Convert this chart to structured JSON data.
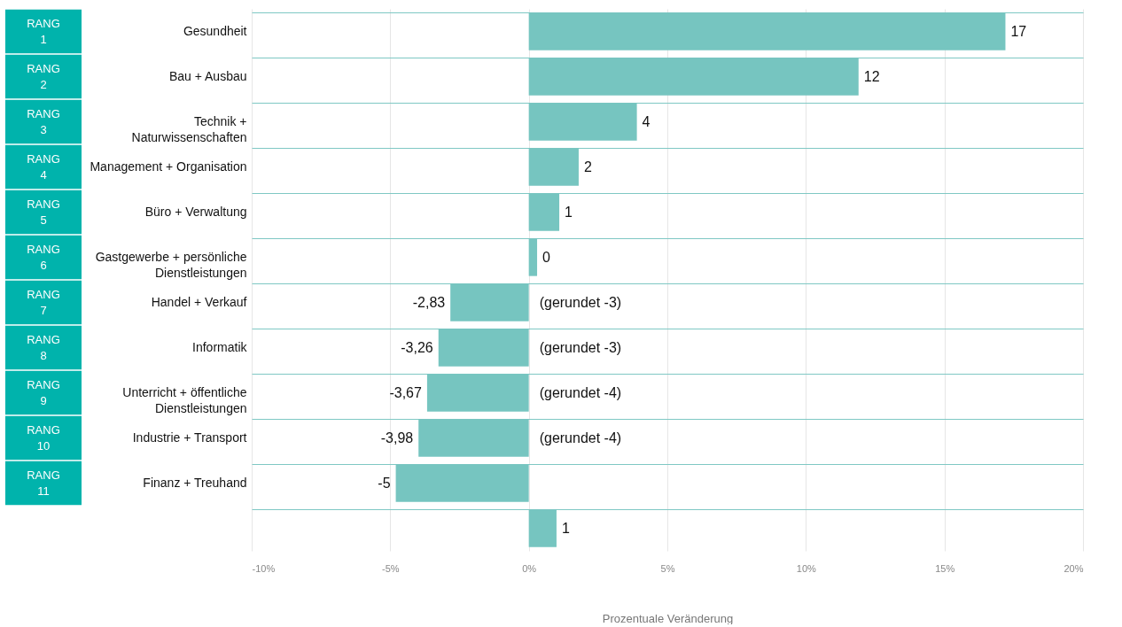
{
  "chart_data": {
    "type": "bar",
    "orientation": "horizontal",
    "categories": [
      "Gesundheit",
      "Bau + Ausbau",
      "Technik +\nNaturwissenschaften",
      "Management + Organisation",
      "Büro + Verwaltung",
      "Gastgewerbe + persönliche\nDienstleistungen",
      "Handel + Verkauf",
      "Informatik",
      "Unterricht + öffentliche\nDienstleistungen",
      "Industrie + Transport",
      "Finanz + Treuhand",
      null
    ],
    "values": [
      17.2,
      11.9,
      3.9,
      1.8,
      1.1,
      0.3,
      -2.83,
      -3.26,
      -3.67,
      -3.98,
      -4.8,
      1.0
    ],
    "value_labels": [
      "17",
      "12",
      "4",
      "2",
      "1",
      "0",
      "-2,83",
      "-3,26",
      "-3,67",
      "-3,98",
      "-5",
      "1"
    ],
    "color": "#76c5c0",
    "xlabel": "Prozentuale Veränderung",
    "xlim": [
      -10,
      20
    ],
    "xticks": [
      {
        "value": -10,
        "label": "-10%"
      },
      {
        "value": -5,
        "label": "-5%"
      },
      {
        "value": 0,
        "label": "0%"
      },
      {
        "value": 5,
        "label": "5%"
      },
      {
        "value": 10,
        "label": "10%"
      },
      {
        "value": 15,
        "label": "15%"
      },
      {
        "value": 20,
        "label": "20%"
      }
    ],
    "grid": true,
    "annotations": [
      "RANG\n1",
      "RANG\n2",
      "RANG\n3",
      "RANG\n4",
      "RANG\n5",
      "RANG\n6",
      "RANG\n7",
      "RANG\n8",
      "RANG\n9",
      "RANG\n10",
      "RANG\n11",
      "(gerundet -3)",
      "(gerundet -3)",
      "(gerundet -4)",
      "(gerundet -4)"
    ]
  }
}
